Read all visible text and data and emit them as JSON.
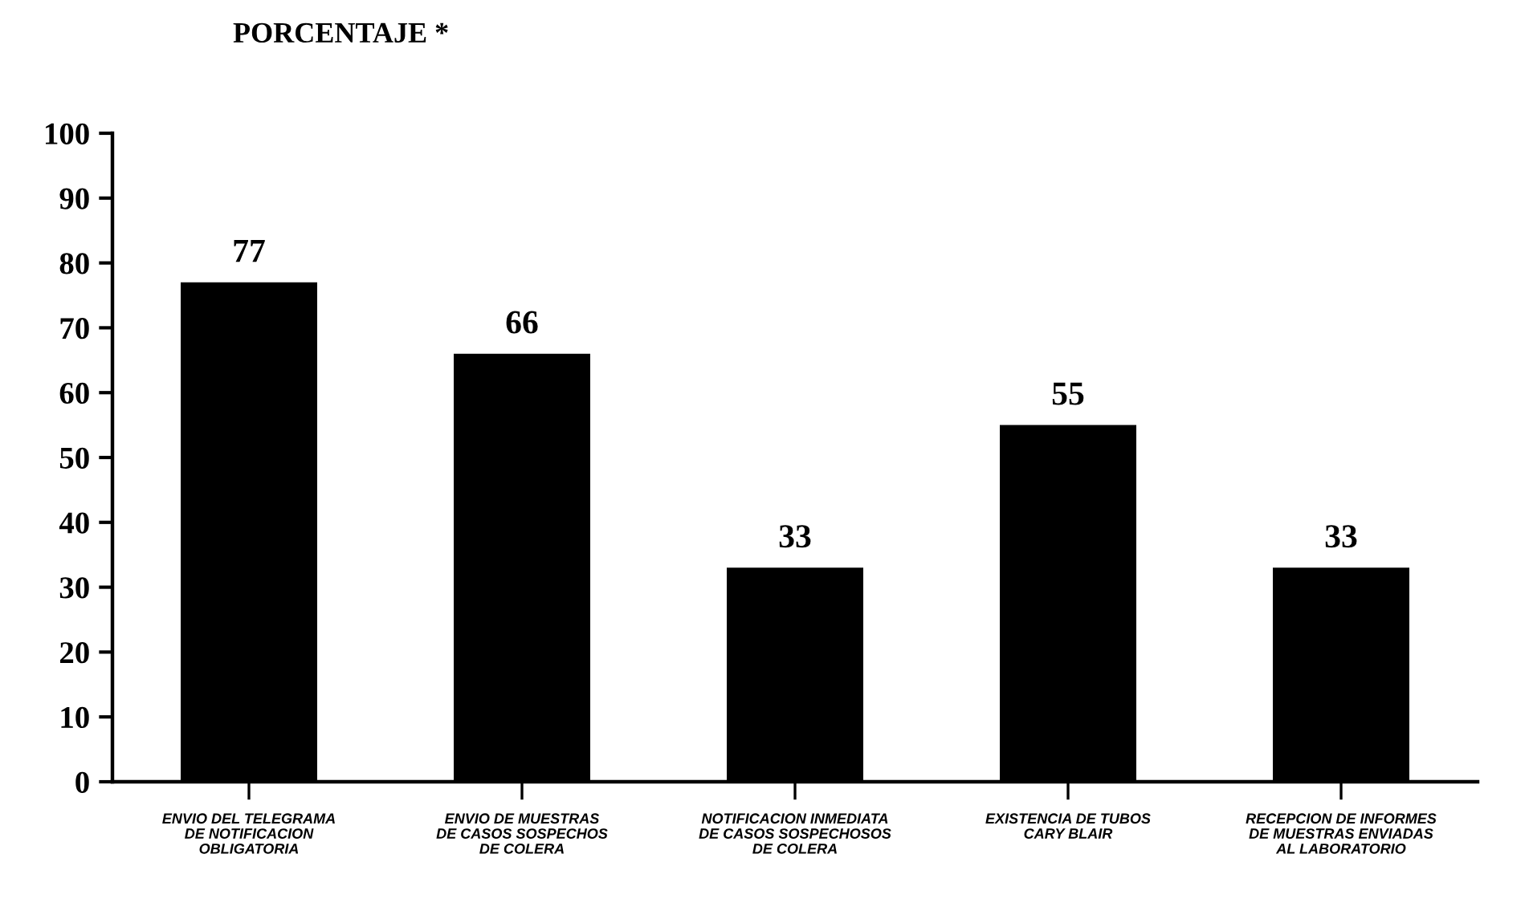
{
  "chart_data": {
    "type": "bar",
    "ylabel": "PORCENTAJE *",
    "categories": [
      "ENVIO DEL TELEGRAMA\nDE NOTIFICACION\nOBLIGATORIA",
      "ENVIO DE MUESTRAS\nDE CASOS SOSPECHOS\nDE COLERA",
      "NOTIFICACION INMEDIATA\nDE CASOS SOSPECHOSOS\nDE COLERA",
      "EXISTENCIA DE TUBOS\nCARY BLAIR",
      "RECEPCION DE INFORMES\nDE MUESTRAS ENVIADAS\nAL LABORATORIO"
    ],
    "values": [
      77,
      66,
      33,
      55,
      33
    ],
    "color": "#000000",
    "ylim": [
      0,
      100
    ],
    "yticks": [
      0,
      10,
      20,
      30,
      40,
      50,
      60,
      70,
      80,
      90,
      100
    ],
    "data_labels": true,
    "grid": false,
    "legend": false
  }
}
